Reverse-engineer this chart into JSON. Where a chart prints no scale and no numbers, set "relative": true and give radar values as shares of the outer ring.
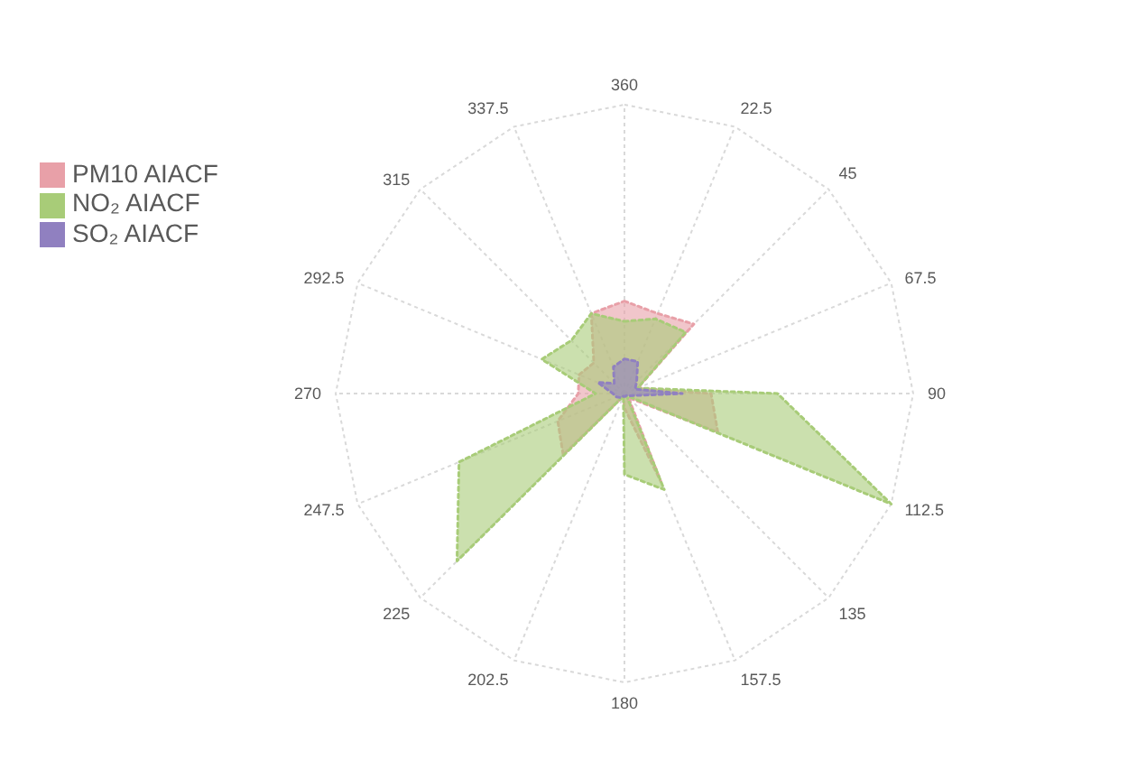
{
  "chart_data": {
    "type": "radar",
    "relative": true,
    "grid": true,
    "legend": "top left",
    "line_style": "dotted",
    "marker": "none",
    "categories": [
      "360",
      "22.5",
      "45",
      "67.5",
      "90",
      "112.5",
      "135",
      "157.5",
      "180",
      "202.5",
      "225",
      "247.5",
      "270",
      "292.5",
      "315",
      "337.5"
    ],
    "series": [
      {
        "name": "PM10 AIACF",
        "color": "#e8a0a8",
        "values": [
          0.32,
          0.3,
          0.34,
          0.05,
          0.3,
          0.35,
          0.02,
          0.33,
          0.05,
          0.01,
          0.3,
          0.25,
          0.16,
          0.17,
          0.15,
          0.3
        ]
      },
      {
        "name": "NO₂ AIACF",
        "color": "#a8cc78",
        "values": [
          0.25,
          0.28,
          0.3,
          0.05,
          0.53,
          1,
          0.01,
          0.36,
          0.28,
          0.01,
          0.82,
          0.62,
          0.1,
          0.31,
          0.26,
          0.3
        ]
      },
      {
        "name": "SO₂ AIACF",
        "color": "#9080c0",
        "values": [
          0.12,
          0.12,
          0.06,
          0.04,
          0.2,
          0.02,
          0.01,
          0.01,
          0.01,
          0.01,
          0.02,
          0.03,
          0.04,
          0.1,
          0.05,
          0.1
        ]
      }
    ]
  }
}
